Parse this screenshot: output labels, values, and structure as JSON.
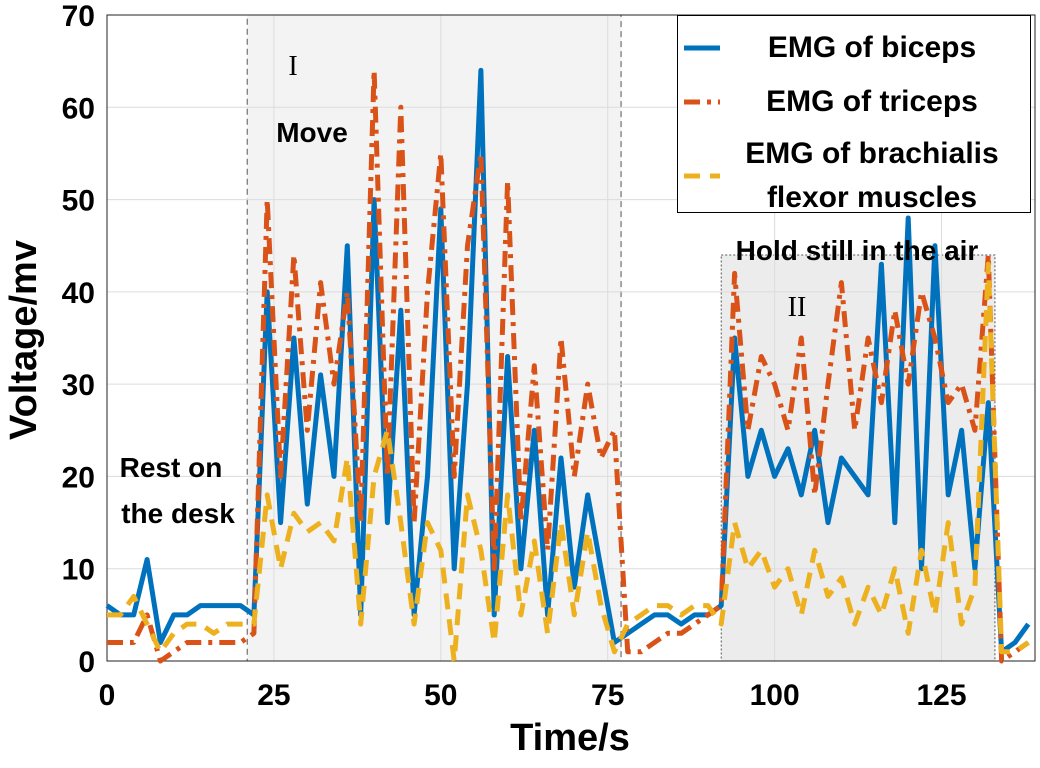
{
  "chart_data": {
    "type": "line",
    "x_label": "Time/s",
    "y_label": "Voltage/mv",
    "xlim": [
      0,
      139
    ],
    "ylim": [
      0,
      70
    ],
    "xticks": [
      0,
      25,
      50,
      75,
      100,
      125
    ],
    "yticks": [
      0,
      10,
      20,
      30,
      40,
      50,
      60,
      70
    ],
    "grid": true,
    "legend": "upper right",
    "x": [
      0,
      2,
      4,
      6,
      8,
      10,
      12,
      14,
      16,
      18,
      20,
      22,
      24,
      26,
      28,
      30,
      32,
      34,
      36,
      38,
      40,
      42,
      44,
      46,
      48,
      50,
      52,
      54,
      56,
      58,
      60,
      62,
      64,
      66,
      68,
      70,
      72,
      74,
      76,
      78,
      80,
      82,
      84,
      86,
      88,
      90,
      92,
      94,
      96,
      98,
      100,
      102,
      104,
      106,
      108,
      110,
      112,
      114,
      116,
      118,
      120,
      122,
      124,
      126,
      128,
      130,
      132,
      134,
      136,
      138
    ],
    "series": [
      {
        "name": "EMG of biceps",
        "color": "#0072bd",
        "style": "solid",
        "values": [
          6,
          5,
          5,
          11,
          2,
          5,
          5,
          6,
          6,
          6,
          6,
          5,
          40,
          15,
          35,
          17,
          31,
          20,
          45,
          5,
          50,
          15,
          38,
          5,
          20,
          49,
          10,
          30,
          64,
          5,
          33,
          10,
          25,
          5,
          22,
          8,
          18,
          10,
          2,
          3,
          4,
          5,
          5,
          4,
          5,
          5,
          6,
          35,
          20,
          25,
          20,
          23,
          18,
          25,
          15,
          22,
          20,
          18,
          43,
          15,
          48,
          10,
          45,
          18,
          25,
          10,
          28,
          1,
          2,
          4
        ]
      },
      {
        "name": "EMG of triceps",
        "color": "#d95319",
        "style": "dashdot",
        "values": [
          2,
          2,
          2,
          5,
          0,
          1,
          2,
          2,
          2,
          2,
          2,
          3,
          50,
          20,
          44,
          25,
          41,
          30,
          40,
          15,
          64,
          20,
          60,
          15,
          40,
          55,
          20,
          45,
          55,
          10,
          52,
          15,
          32,
          12,
          35,
          20,
          30,
          22,
          25,
          1,
          1,
          2,
          3,
          3,
          4,
          5,
          6,
          42,
          25,
          33,
          30,
          25,
          35,
          18,
          30,
          41,
          25,
          35,
          28,
          38,
          30,
          40,
          35,
          28,
          30,
          25,
          44,
          0,
          1,
          2
        ]
      },
      {
        "name": "EMG of brachialis flexor muscles",
        "color": "#edb120",
        "style": "dashed",
        "values": [
          5,
          5,
          7,
          4,
          1,
          3,
          4,
          4,
          3,
          4,
          4,
          4,
          18,
          10,
          16,
          14,
          15,
          13,
          22,
          4,
          20,
          25,
          15,
          4,
          15,
          12,
          0,
          18,
          12,
          2,
          18,
          5,
          13,
          3,
          15,
          5,
          14,
          6,
          1,
          4,
          5,
          6,
          6,
          5,
          6,
          6,
          4,
          15,
          10,
          12,
          8,
          10,
          5,
          12,
          7,
          9,
          4,
          8,
          5,
          10,
          3,
          12,
          5,
          15,
          4,
          8,
          43,
          1,
          1,
          2
        ]
      }
    ],
    "regions": [
      {
        "label": "I",
        "x": [
          21,
          77
        ]
      },
      {
        "label": "II",
        "x": [
          92,
          133
        ]
      }
    ],
    "annotations": [
      "Rest on",
      "the desk",
      "Move",
      "Hold still in the air"
    ]
  }
}
